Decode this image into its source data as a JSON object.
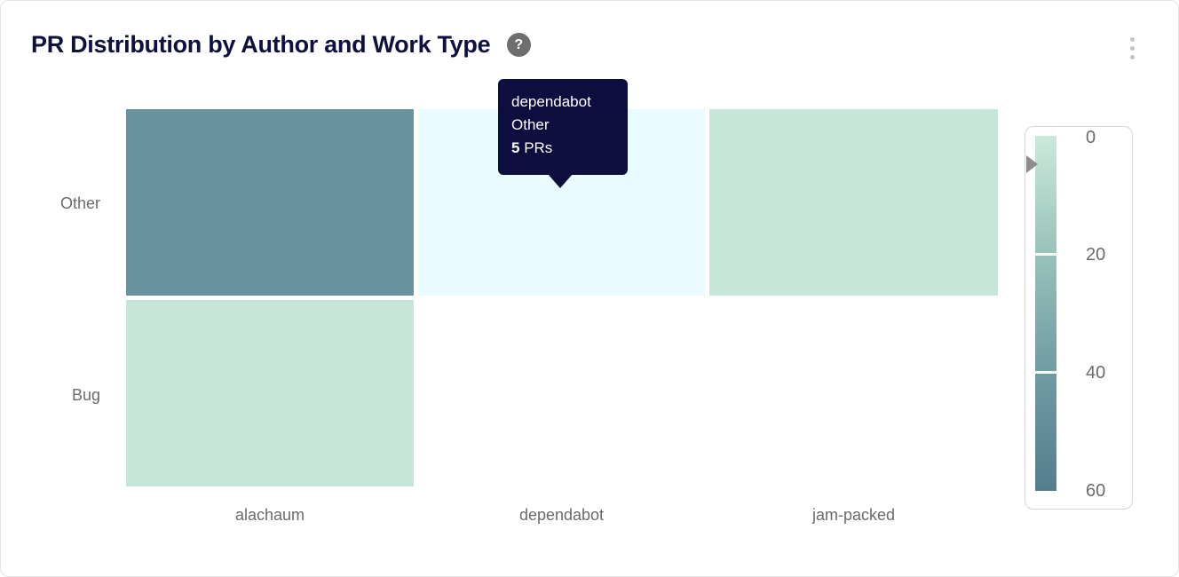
{
  "card": {
    "title": "PR Distribution by Author and Work Type",
    "help_glyph": "?",
    "menu_icon": "kebab-vertical"
  },
  "tooltip": {
    "author": "dependabot",
    "work_type": "Other",
    "value": "5",
    "unit": " PRs",
    "bg_color": "#0e0d40"
  },
  "chart_data": {
    "type": "heatmap",
    "title": "PR Distribution by Author and Work Type",
    "x_categories": [
      "alachaum",
      "dependabot",
      "jam-packed"
    ],
    "y_categories": [
      "Other",
      "Bug"
    ],
    "unit": "PRs",
    "cells": [
      {
        "x": "alachaum",
        "y": "Other",
        "value_estimate_from_color": 45,
        "color": "#68929e",
        "hovered": false
      },
      {
        "x": "dependabot",
        "y": "Other",
        "value": 5,
        "color": "#e9fcff",
        "hovered": true
      },
      {
        "x": "jam-packed",
        "y": "Other",
        "value_estimate_from_color": 2,
        "color": "#c5e6d8",
        "hovered": false
      },
      {
        "x": "alachaum",
        "y": "Bug",
        "value_estimate_from_color": 2,
        "color": "#c5e6d8",
        "hovered": false
      },
      {
        "x": "dependabot",
        "y": "Bug",
        "value": null,
        "color": null,
        "hovered": false
      },
      {
        "x": "jam-packed",
        "y": "Bug",
        "value": null,
        "color": null,
        "hovered": false
      }
    ],
    "colorbar": {
      "min": 0,
      "max": 60,
      "ticks": [
        "0",
        "20",
        "40",
        "60"
      ],
      "gradient": [
        "#cbe9da",
        "#98c2ba",
        "#6f9ba3",
        "#547e8e"
      ],
      "pointer_value": 5,
      "legend_position": "right"
    },
    "grid": "off"
  },
  "colors": {
    "title_text": "#10103f",
    "axis_text": "#6b6b6b",
    "tooltip_bg": "#0e0d40",
    "card_border": "#e3e3e3",
    "cell_dark": "#68929e",
    "cell_mint": "#c5e6d8",
    "cell_hover": "#e9fcff"
  }
}
